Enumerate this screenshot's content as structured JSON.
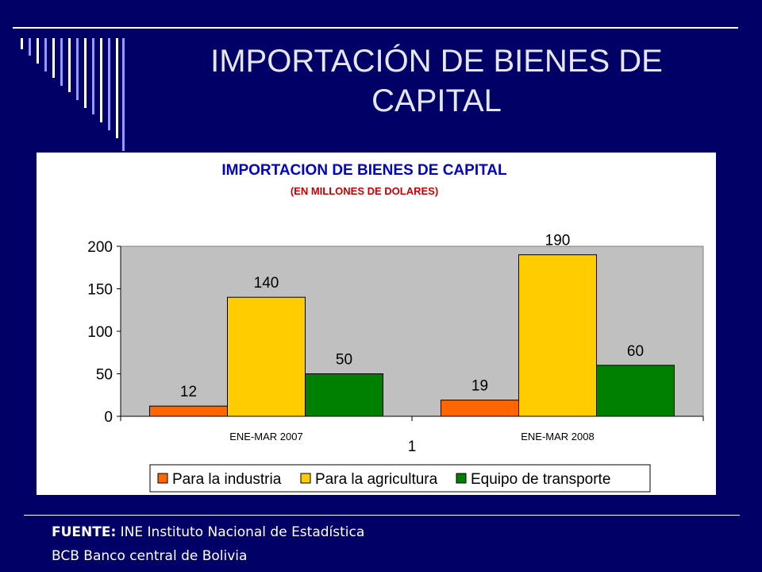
{
  "slide": {
    "title_line1": "IMPORTACIÓN DE BIENES DE",
    "title_line2": "CAPITAL"
  },
  "footer": {
    "source_label": "FUENTE:",
    "line1_text": "INE Instituto Nacional de Estadística",
    "line2_text": "BCB Banco central de Bolivia"
  },
  "colors": {
    "background": "#000066",
    "plot_area": "#c0c0c0",
    "title_blue": "#0000cc",
    "subtitle_red": "#cc0000"
  },
  "chart_data": {
    "type": "bar",
    "title": "IMPORTACION DE BIENES DE CAPITAL",
    "subtitle": "(EN MILLONES DE DOLARES)",
    "categories": [
      "ENE-MAR 2007",
      "ENE-MAR 2008"
    ],
    "x_axis_label": "1",
    "ylim": [
      0,
      200
    ],
    "yticks": [
      0,
      50,
      100,
      150,
      200
    ],
    "series": [
      {
        "name": "Para la industria",
        "color": "#ff6600",
        "values": [
          12,
          19
        ]
      },
      {
        "name": "Para la agricultura",
        "color": "#ffcc00",
        "values": [
          140,
          190
        ]
      },
      {
        "name": "Equipo de transporte",
        "color": "#008000",
        "values": [
          50,
          60
        ]
      }
    ],
    "legend_position": "bottom",
    "grid": false
  }
}
